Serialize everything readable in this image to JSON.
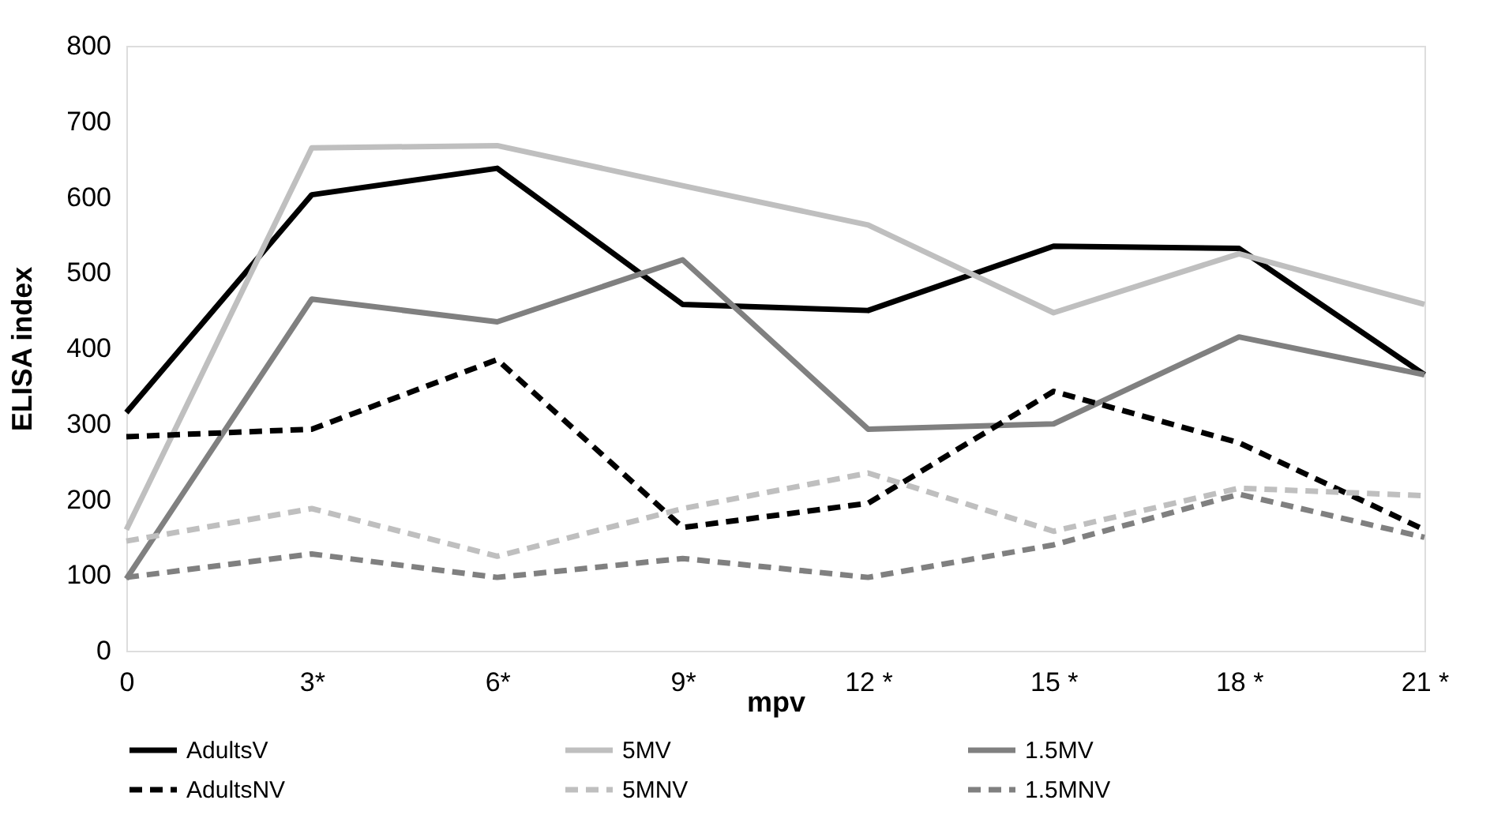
{
  "chart_data": {
    "type": "line",
    "xlabel": "mpv",
    "ylabel": "ELISA index",
    "categories": [
      "0",
      "3*",
      "6*",
      "9*",
      "12 *",
      "15 *",
      "18 *",
      "21 *"
    ],
    "ylim": [
      0,
      800
    ],
    "yticks": [
      0,
      100,
      200,
      300,
      400,
      500,
      600,
      700,
      800
    ],
    "grid": false,
    "legend": "bottom",
    "marker": "none",
    "series": [
      {
        "name": "AdultsV",
        "color": "#000000",
        "line_style": "solid",
        "values": [
          315,
          603,
          638,
          458,
          450,
          535,
          532,
          365
        ]
      },
      {
        "name": "5MV",
        "color": "#bfbfbf",
        "line_style": "solid",
        "values": [
          160,
          665,
          668,
          615,
          563,
          447,
          525,
          458
        ]
      },
      {
        "name": "1.5MV",
        "color": "#808080",
        "line_style": "solid",
        "values": [
          95,
          465,
          435,
          517,
          293,
          300,
          415,
          365
        ]
      },
      {
        "name": "AdultsNV",
        "color": "#000000",
        "line_style": "dashed",
        "values": [
          283,
          293,
          385,
          163,
          195,
          343,
          275,
          160
        ]
      },
      {
        "name": "5MNV",
        "color": "#bfbfbf",
        "line_style": "dashed",
        "values": [
          145,
          188,
          125,
          188,
          235,
          158,
          215,
          205
        ]
      },
      {
        "name": "1.5MNV",
        "color": "#808080",
        "line_style": "dashed",
        "values": [
          97,
          128,
          97,
          122,
          97,
          140,
          207,
          150
        ]
      }
    ]
  }
}
